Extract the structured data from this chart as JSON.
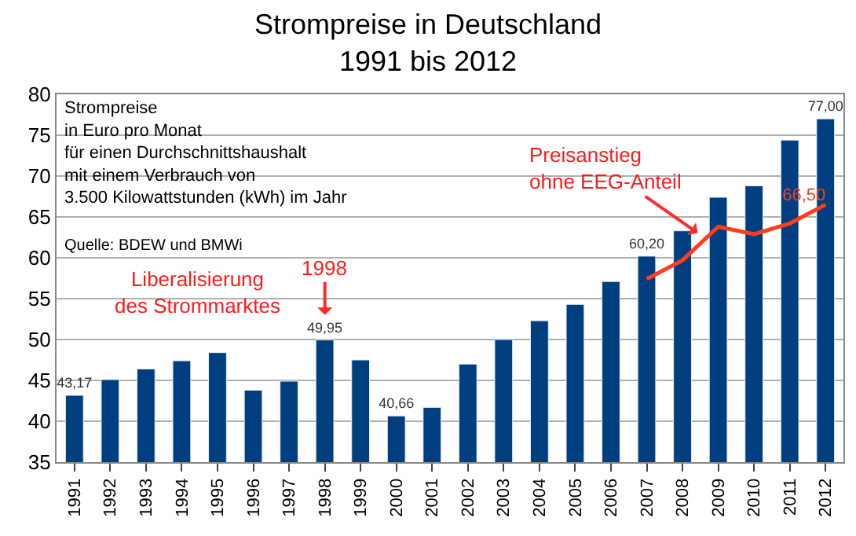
{
  "chart_data": {
    "type": "bar",
    "title": "Strompreise in Deutschland\n1991 bis 2012",
    "categories": [
      "1991",
      "1992",
      "1993",
      "1994",
      "1995",
      "1996",
      "1997",
      "1998",
      "1999",
      "2000",
      "2001",
      "2002",
      "2003",
      "2004",
      "2005",
      "2006",
      "2007",
      "2008",
      "2009",
      "2010",
      "2011",
      "2012"
    ],
    "series": [
      {
        "color": "#003f7f",
        "values": [
          43.17,
          45.1,
          46.4,
          47.4,
          48.4,
          43.8,
          44.9,
          49.95,
          47.5,
          40.66,
          41.7,
          47.0,
          50.0,
          52.3,
          54.3,
          57.1,
          60.2,
          63.3,
          67.4,
          68.8,
          74.4,
          77.0
        ],
        "value_labels": [
          "43,17",
          null,
          null,
          null,
          null,
          null,
          null,
          "49,95",
          null,
          "40,66",
          null,
          null,
          null,
          null,
          null,
          null,
          "60,20",
          null,
          null,
          null,
          null,
          "77,00"
        ]
      },
      {
        "type": "line",
        "color": "#ff3c1e",
        "values": [
          null,
          null,
          null,
          null,
          null,
          null,
          null,
          null,
          null,
          null,
          null,
          null,
          null,
          null,
          null,
          null,
          57.4,
          59.7,
          63.8,
          62.9,
          64.2,
          66.5
        ],
        "value_labels": [
          null,
          null,
          null,
          null,
          null,
          null,
          null,
          null,
          null,
          null,
          null,
          null,
          null,
          null,
          null,
          null,
          null,
          null,
          null,
          null,
          null,
          "66,50"
        ]
      }
    ],
    "ylim": [
      35,
      80
    ],
    "yticks": [
      35,
      40,
      45,
      50,
      55,
      60,
      65,
      70,
      75,
      80
    ],
    "grid": "y",
    "annotations": [
      "Strompreise\nin Euro pro Monat\nfür einen Durchschnittshaushalt\nmit einem Verbrauch von\n3.500 Kilowattstunden (kWh) im Jahr",
      "Quelle: BDEW und BMWi",
      "Liberalisierung\ndes Strommarktes",
      "1998",
      {
        "text": "Preisanstieg\nohne EEG-Anteil",
        "x": "2009",
        "y": 63.8
      }
    ]
  }
}
